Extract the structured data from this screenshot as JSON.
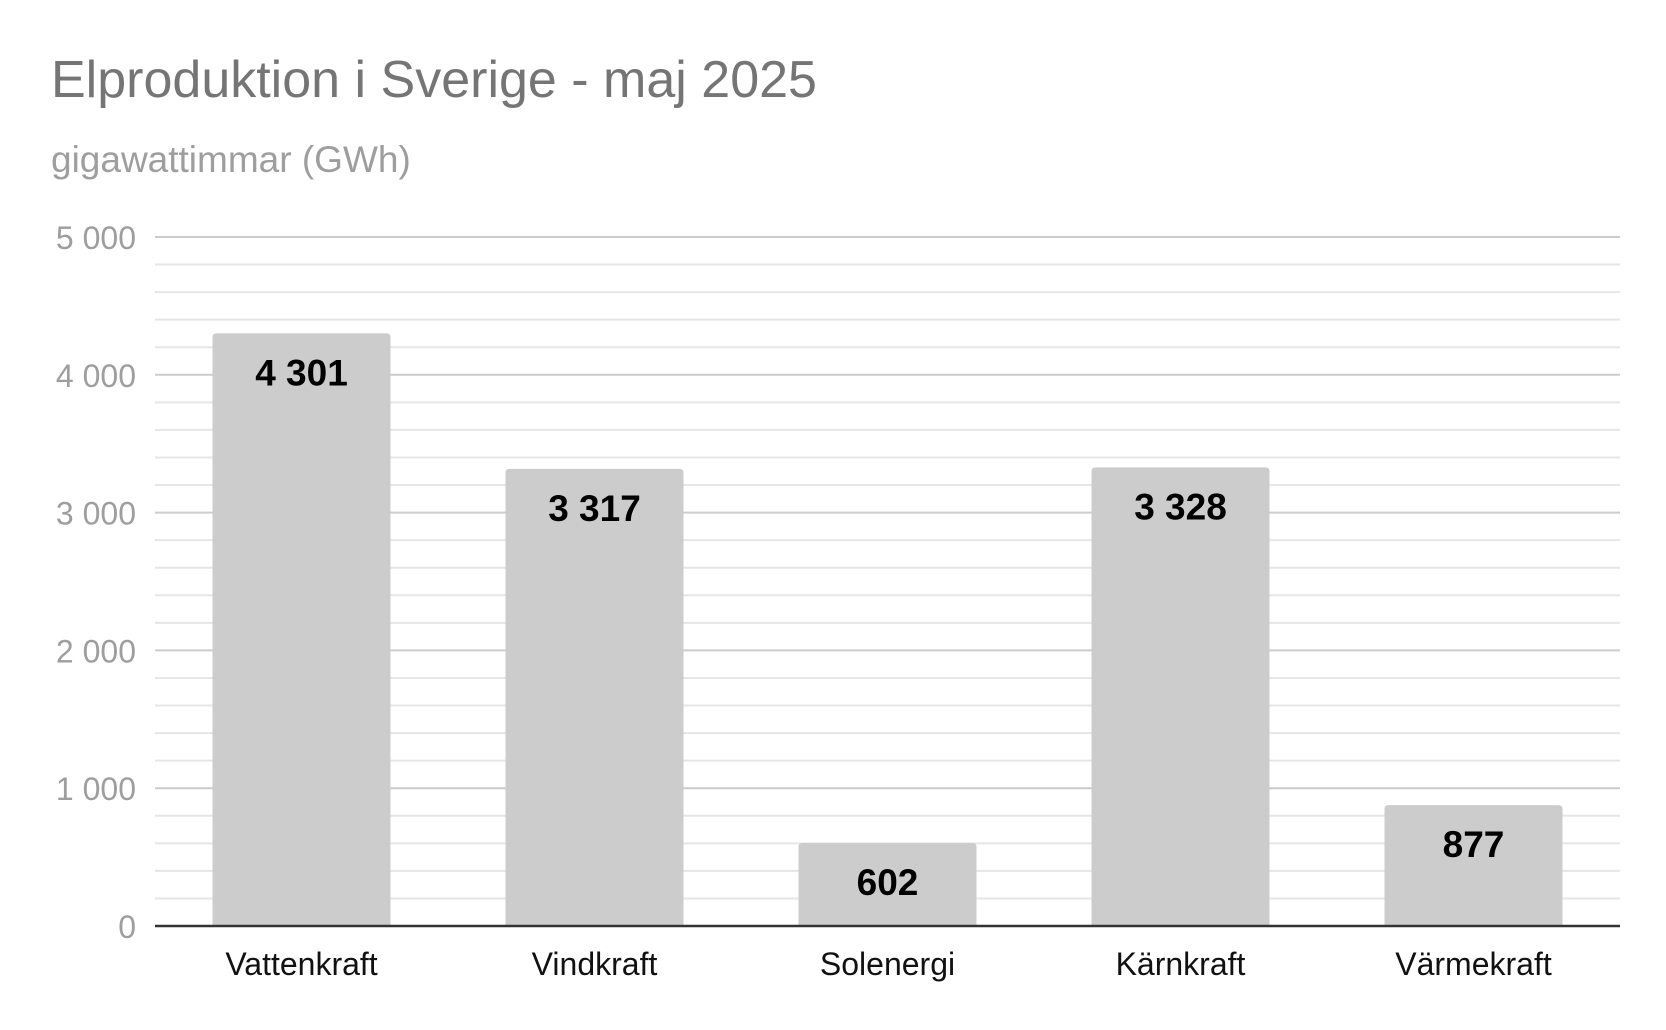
{
  "chart_data": {
    "type": "bar",
    "title": "Elproduktion i Sverige - maj 2025",
    "subtitle": "gigawattimmar (GWh)",
    "xlabel": "",
    "ylabel": "",
    "categories": [
      "Vattenkraft",
      "Vindkraft",
      "Solenergi",
      "Kärnkraft",
      "Värmekraft"
    ],
    "values": [
      4301,
      3317,
      602,
      3328,
      877
    ],
    "value_labels": [
      "4 301",
      "3 317",
      "602",
      "3 328",
      "877"
    ],
    "ylim": [
      0,
      5000
    ],
    "yticks": [
      0,
      1000,
      2000,
      3000,
      4000,
      5000
    ],
    "ytick_labels": [
      "0",
      "1 000",
      "2 000",
      "3 000",
      "4 000",
      "5 000"
    ],
    "minor_gridlines_per_major": 4,
    "grid": true,
    "legend": "none",
    "colors": {
      "bar": "#cccccc",
      "major_grid": "#cccccc",
      "minor_grid": "#e6e6e6",
      "axis": "#333333",
      "tick_label": "#9e9e9e",
      "category_label": "#111111",
      "value_label": "#000000"
    }
  }
}
